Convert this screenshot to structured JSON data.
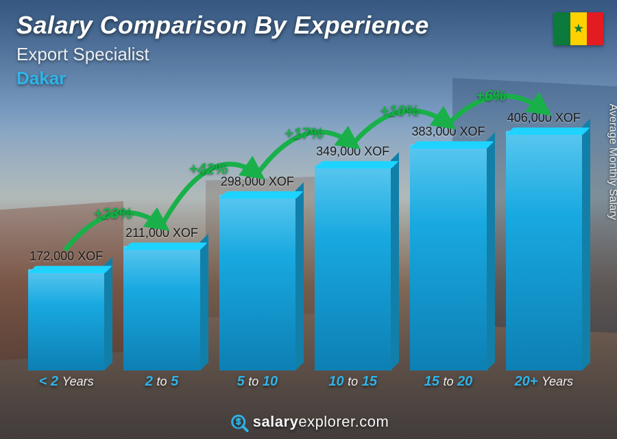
{
  "header": {
    "title": "Salary Comparison By Experience",
    "subtitle": "Export Specialist",
    "city": "Dakar",
    "city_color": "#2fb4e8",
    "title_color": "#ffffff",
    "subtitle_color": "#e9eef2"
  },
  "flag": {
    "stripes": [
      "#0b7a3b",
      "#ffd100",
      "#e31b23"
    ],
    "star_color": "#0b7a3b"
  },
  "y_axis_label": "Average Monthly Salary",
  "chart": {
    "type": "bar",
    "currency_suffix": " XOF",
    "max_value": 406000,
    "bar_main_color": "#18a9e0",
    "bar_gradient_top": "#5ac7ef",
    "bar_gradient_bottom": "#0d7fb4",
    "accent_color": "#2fb4e8",
    "arc_color": "#19b04a",
    "arc_width": 7,
    "bars": [
      {
        "label_bold": "< 2",
        "label_thin": "Years",
        "value": 172000,
        "value_label": "172,000 XOF"
      },
      {
        "label_bold": "2",
        "label_mid": "to",
        "label_bold2": "5",
        "value": 211000,
        "value_label": "211,000 XOF"
      },
      {
        "label_bold": "5",
        "label_mid": "to",
        "label_bold2": "10",
        "value": 298000,
        "value_label": "298,000 XOF"
      },
      {
        "label_bold": "10",
        "label_mid": "to",
        "label_bold2": "15",
        "value": 349000,
        "value_label": "349,000 XOF"
      },
      {
        "label_bold": "15",
        "label_mid": "to",
        "label_bold2": "20",
        "value": 383000,
        "value_label": "383,000 XOF"
      },
      {
        "label_bold": "20+",
        "label_thin": "Years",
        "value": 406000,
        "value_label": "406,000 XOF"
      }
    ],
    "increases": [
      {
        "from": 0,
        "to": 1,
        "pct": "+23%"
      },
      {
        "from": 1,
        "to": 2,
        "pct": "+42%"
      },
      {
        "from": 2,
        "to": 3,
        "pct": "+17%"
      },
      {
        "from": 3,
        "to": 4,
        "pct": "+10%"
      },
      {
        "from": 4,
        "to": 5,
        "pct": "+6%"
      }
    ]
  },
  "footer": {
    "domain_bold": "salary",
    "domain_light": "explorer",
    "domain_suffix": ".com",
    "icon_color": "#2fb4e8"
  }
}
